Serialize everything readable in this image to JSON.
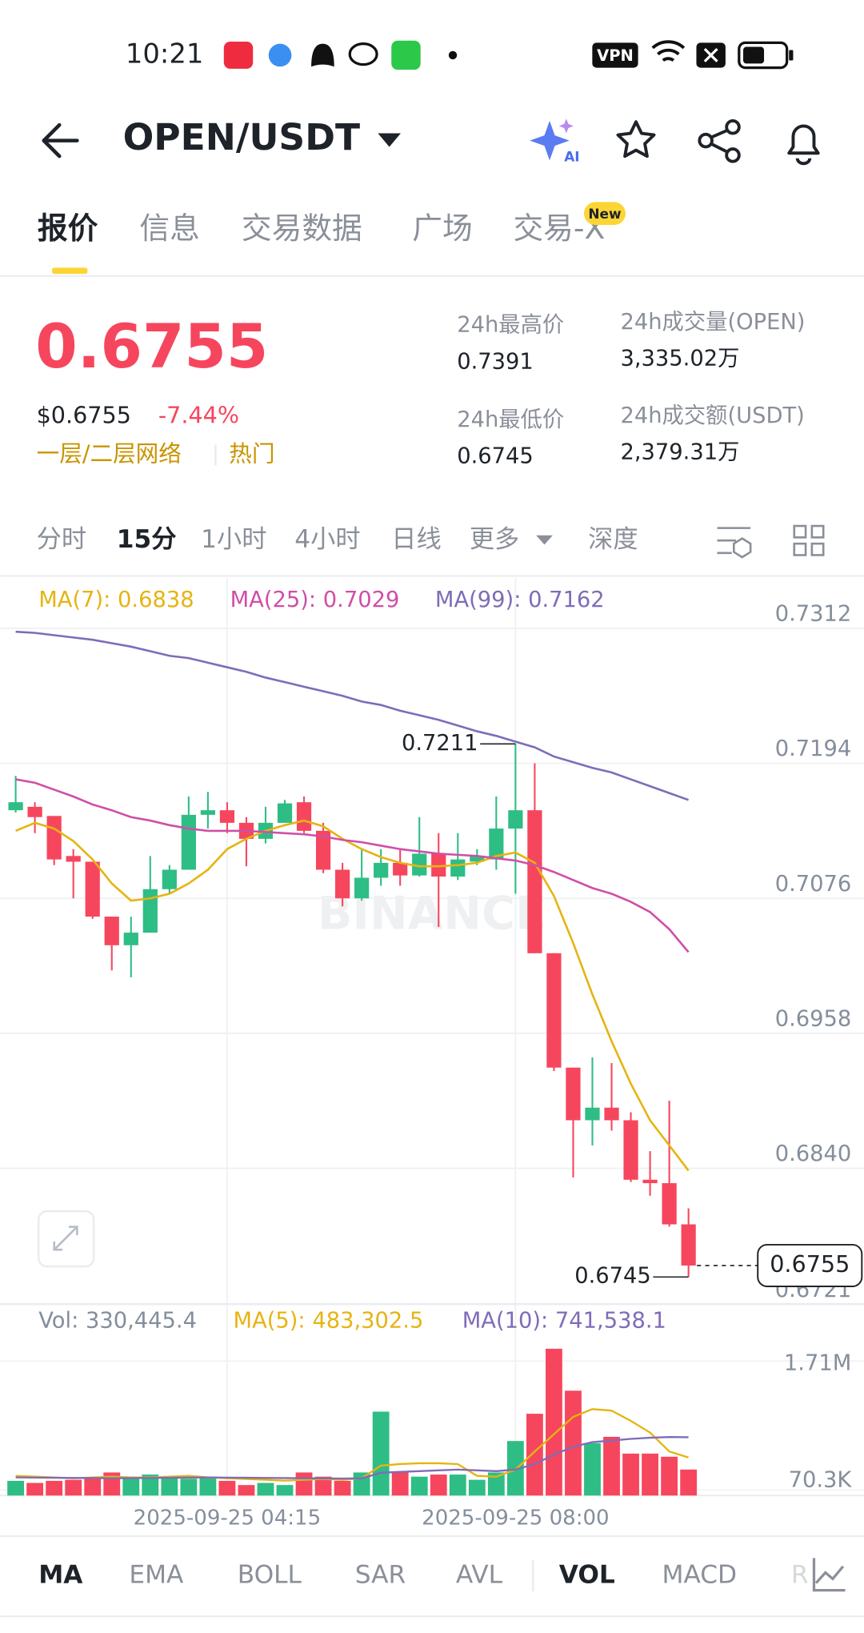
{
  "status_bar": {
    "time": "10:21",
    "vpn": "VPN"
  },
  "header": {
    "pair": "OPEN/USDT",
    "ai": "AI"
  },
  "tabs": {
    "items": [
      "报价",
      "信息",
      "交易数据",
      "广场",
      "交易-X"
    ],
    "badge": "New"
  },
  "price_panel": {
    "last": "0.6755",
    "usd": "$0.6755",
    "change": "-7.44%",
    "tags": [
      "一层/二层网络",
      "热门"
    ],
    "stats": [
      {
        "label": "24h最高价",
        "value": "0.7391"
      },
      {
        "label": "24h成交量(OPEN)",
        "value": "3,335.02万"
      },
      {
        "label": "24h最低价",
        "value": "0.6745"
      },
      {
        "label": "24h成交额(USDT)",
        "value": "2,379.31万"
      }
    ]
  },
  "intervals": {
    "items": [
      "分时",
      "15分",
      "1小时",
      "4小时",
      "日线",
      "更多",
      "深度"
    ]
  },
  "indicators": {
    "items": [
      "MA",
      "EMA",
      "BOLL",
      "SAR",
      "AVL",
      "VOL",
      "MACD",
      "R"
    ]
  },
  "chart_data": {
    "type": "candlestick",
    "categories": [
      null,
      null,
      null,
      null,
      null,
      null,
      null,
      null,
      null,
      null,
      null,
      "2025-09-25 04:15",
      null,
      null,
      null,
      null,
      null,
      null,
      null,
      null,
      null,
      null,
      null,
      null,
      null,
      null,
      "2025-09-25 08:00",
      null,
      null,
      null,
      null,
      null,
      null,
      null,
      null,
      null
    ],
    "open": [
      0.7153,
      0.7156,
      0.7148,
      0.7113,
      0.7108,
      0.706,
      0.7035,
      0.7046,
      0.7084,
      0.7101,
      0.7149,
      0.7153,
      0.7142,
      0.7128,
      0.7142,
      0.716,
      0.7135,
      0.7101,
      0.7076,
      0.7094,
      0.7107,
      0.7096,
      0.7115,
      0.7095,
      0.7108,
      0.711,
      0.7137,
      0.7153,
      0.7028,
      0.6928,
      0.6882,
      0.6893,
      0.6882,
      0.683,
      0.6827,
      0.6791
    ],
    "high": [
      0.7183,
      0.716,
      0.7148,
      0.7119,
      0.7108,
      0.706,
      0.706,
      0.7113,
      0.7105,
      0.7165,
      0.7169,
      0.716,
      0.7147,
      0.7156,
      0.7162,
      0.7165,
      0.7142,
      0.7107,
      0.7119,
      0.7119,
      0.7119,
      0.7147,
      0.7133,
      0.7133,
      0.7119,
      0.7165,
      0.7211,
      0.7194,
      0.7028,
      0.6928,
      0.6937,
      0.6932,
      0.6889,
      0.6855,
      0.6899,
      0.6805
    ],
    "low": [
      0.7151,
      0.7133,
      0.7105,
      0.7076,
      0.7058,
      0.7013,
      0.7007,
      0.7046,
      0.708,
      0.7101,
      0.7137,
      0.7133,
      0.7104,
      0.7124,
      0.7142,
      0.7133,
      0.7098,
      0.7069,
      0.7074,
      0.7087,
      0.7087,
      0.7095,
      0.7051,
      0.7092,
      0.7105,
      0.7101,
      0.708,
      0.7028,
      0.6925,
      0.6832,
      0.686,
      0.6873,
      0.6828,
      0.6816,
      0.6789,
      0.6745
    ],
    "close": [
      0.716,
      0.7147,
      0.711,
      0.7108,
      0.706,
      0.7035,
      0.7046,
      0.7084,
      0.7101,
      0.7149,
      0.7153,
      0.7142,
      0.7128,
      0.7142,
      0.7159,
      0.7135,
      0.7101,
      0.7076,
      0.7094,
      0.7107,
      0.7096,
      0.7115,
      0.7095,
      0.711,
      0.7113,
      0.7137,
      0.7153,
      0.7028,
      0.6928,
      0.6882,
      0.6893,
      0.6882,
      0.683,
      0.6827,
      0.6791,
      0.6755
    ],
    "colors": {
      "up": "#2ebd85",
      "down": "#f6465d"
    },
    "series": [
      {
        "name": "MA(7): 0.6838",
        "color": "#e6b412",
        "values": [
          0.7135,
          0.7142,
          0.7137,
          0.7126,
          0.711,
          0.7089,
          0.7074,
          0.7076,
          0.708,
          0.7089,
          0.7101,
          0.7119,
          0.7128,
          0.7135,
          0.714,
          0.7144,
          0.7139,
          0.7128,
          0.7119,
          0.7112,
          0.7107,
          0.7104,
          0.7104,
          0.7105,
          0.7107,
          0.7113,
          0.7116,
          0.7107,
          0.7078,
          0.7037,
          0.6992,
          0.6951,
          0.6914,
          0.6882,
          0.686,
          0.6838
        ]
      },
      {
        "name": "MA(25): 0.7029",
        "color": "#cf4fa7",
        "values": [
          0.718,
          0.7177,
          0.7171,
          0.7165,
          0.7158,
          0.7153,
          0.7147,
          0.7144,
          0.714,
          0.7137,
          0.7135,
          0.7135,
          0.7135,
          0.7134,
          0.7133,
          0.7132,
          0.713,
          0.7127,
          0.7125,
          0.7122,
          0.7119,
          0.7117,
          0.7115,
          0.7114,
          0.7113,
          0.7111,
          0.7109,
          0.7105,
          0.7099,
          0.7092,
          0.7085,
          0.708,
          0.7073,
          0.7064,
          0.7049,
          0.7029
        ]
      },
      {
        "name": "MA(99): 0.7162",
        "color": "#7f6cb8",
        "values": [
          0.7309,
          0.7308,
          0.7306,
          0.7304,
          0.7302,
          0.7299,
          0.7296,
          0.7292,
          0.7288,
          0.7286,
          0.7282,
          0.7278,
          0.7274,
          0.7269,
          0.7265,
          0.7261,
          0.7257,
          0.7253,
          0.7248,
          0.7245,
          0.724,
          0.7236,
          0.7232,
          0.7227,
          0.7222,
          0.7218,
          0.7213,
          0.7208,
          0.72,
          0.7195,
          0.719,
          0.7186,
          0.718,
          0.7174,
          0.7168,
          0.7162
        ]
      }
    ],
    "ylim": [
      0.6716,
      0.7356
    ],
    "yticks": [
      0.7312,
      0.7194,
      0.7076,
      0.6958,
      {
        "value": 0.684,
        "label": "0.6840"
      },
      0.6721
    ],
    "grid": true,
    "watermark": "BINANCE",
    "volume": {
      "type": "bar",
      "title": "Vol: 330,445.4",
      "values": [
        186700,
        160000,
        186700,
        200000,
        213300,
        293300,
        213300,
        266700,
        240000,
        213300,
        240000,
        186700,
        133300,
        160000,
        133300,
        293300,
        240000,
        186700,
        293300,
        1066700,
        293300,
        240000,
        266700,
        266700,
        200000,
        293300,
        693300,
        1040000,
        1866700,
        1333300,
        666700,
        746700,
        533300,
        533300,
        493300,
        330445.4
      ],
      "series": [
        {
          "name": "MA(5): 483,302.5",
          "color": "#e6b412",
          "values": [
            250000,
            240000,
            230000,
            220000,
            230000,
            240000,
            230000,
            230000,
            240000,
            250000,
            230000,
            220000,
            210000,
            200000,
            190000,
            200000,
            210000,
            200000,
            220000,
            380000,
            400000,
            410000,
            410000,
            400000,
            250000,
            240000,
            330000,
            560000,
            780000,
            1000000,
            1100000,
            1080000,
            950000,
            800000,
            560000,
            483302.5
          ]
        },
        {
          "name": "MA(10): 741,538.1",
          "color": "#7f6cb8",
          "values": [
            230000,
            228000,
            226000,
            224000,
            222000,
            220000,
            222000,
            224000,
            226000,
            228000,
            230000,
            228000,
            226000,
            224000,
            222000,
            220000,
            218000,
            216000,
            218000,
            290000,
            300000,
            310000,
            320000,
            330000,
            320000,
            310000,
            330000,
            400000,
            520000,
            620000,
            680000,
            700000,
            720000,
            735000,
            745000,
            741538.1
          ]
        }
      ],
      "ylim": [
        0,
        2000000
      ],
      "yticks": [
        {
          "value": 1710000,
          "label": "1.71M"
        },
        {
          "value": 70300,
          "label": "70.3K"
        }
      ]
    }
  }
}
